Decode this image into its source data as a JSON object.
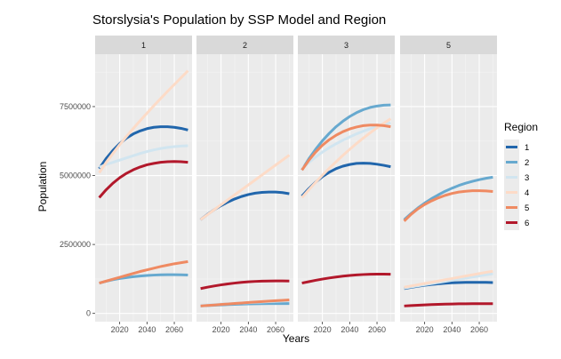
{
  "chart_data": {
    "type": "line",
    "title": "Storslysia's Population by SSP Model and Region",
    "xlabel": "Years",
    "ylabel": "Population",
    "x": [
      2005,
      2010,
      2015,
      2020,
      2025,
      2030,
      2035,
      2040,
      2045,
      2050,
      2055,
      2060,
      2065,
      2070
    ],
    "x_ticks": [
      2020,
      2040,
      2060
    ],
    "x_tick_labels": [
      "2020",
      "2040",
      "2060"
    ],
    "ylim": [
      -300000,
      9400000
    ],
    "y_ticks": [
      0,
      2500000,
      5000000,
      7500000
    ],
    "y_tick_labels": [
      "0",
      "2500000",
      "5000000",
      "7500000"
    ],
    "grid": true,
    "legend": {
      "title": "Region",
      "placement": "right",
      "entries": [
        "1",
        "2",
        "3",
        "4",
        "5",
        "6"
      ]
    },
    "colors": {
      "1": "#2166ac",
      "2": "#67a9cf",
      "3": "#d1e5f0",
      "4": "#fddbc7",
      "5": "#ef8a62",
      "6": "#b2182b"
    },
    "panels": [
      {
        "facet": "1",
        "series": [
          {
            "region": "1",
            "values": [
              5250000,
              5610000,
              5910000,
              6160000,
              6360000,
              6510000,
              6620000,
              6700000,
              6750000,
              6770000,
              6770000,
              6750000,
              6710000,
              6650000
            ]
          },
          {
            "region": "2",
            "values": [
              1100000,
              1165000,
              1220000,
              1265000,
              1300000,
              1330000,
              1355000,
              1375000,
              1390000,
              1400000,
              1405000,
              1405000,
              1400000,
              1390000
            ]
          },
          {
            "region": "3",
            "values": [
              5300000,
              5400000,
              5480000,
              5560000,
              5640000,
              5720000,
              5800000,
              5870000,
              5930000,
              5980000,
              6020000,
              6050000,
              6070000,
              6080000
            ]
          },
          {
            "region": "4",
            "values": [
              5100000,
              5470000,
              5800000,
              6120000,
              6420000,
              6710000,
              6990000,
              7260000,
              7530000,
              7790000,
              8050000,
              8300000,
              8550000,
              8800000
            ]
          },
          {
            "region": "5",
            "values": [
              1100000,
              1170000,
              1240000,
              1310000,
              1380000,
              1450000,
              1520000,
              1580000,
              1640000,
              1700000,
              1750000,
              1800000,
              1840000,
              1880000
            ]
          },
          {
            "region": "6",
            "values": [
              4200000,
              4480000,
              4720000,
              4920000,
              5080000,
              5210000,
              5310000,
              5390000,
              5440000,
              5480000,
              5500000,
              5510000,
              5500000,
              5480000
            ]
          }
        ]
      },
      {
        "facet": "2",
        "series": [
          {
            "region": "1",
            "values": [
              3400000,
              3590000,
              3760000,
              3910000,
              4040000,
              4150000,
              4240000,
              4310000,
              4360000,
              4390000,
              4400000,
              4400000,
              4380000,
              4340000
            ]
          },
          {
            "region": "2",
            "values": [
              270000,
              285000,
              298000,
              310000,
              320000,
              330000,
              338000,
              345000,
              350000,
              354000,
              357000,
              358000,
              358000,
              357000
            ]
          },
          {
            "region": "3",
            "values": [
              300000,
              313000,
              326000,
              339000,
              352000,
              364000,
              376000,
              388000,
              400000,
              412000,
              424000,
              436000,
              448000,
              460000
            ]
          },
          {
            "region": "4",
            "values": [
              3400000,
              3580000,
              3760000,
              3940000,
              4120000,
              4300000,
              4480000,
              4660000,
              4840000,
              5020000,
              5200000,
              5380000,
              5560000,
              5740000
            ]
          },
          {
            "region": "5",
            "values": [
              270000,
              288000,
              306000,
              324000,
              342000,
              360000,
              378000,
              395000,
              412000,
              428000,
              444000,
              460000,
              475000,
              490000
            ]
          },
          {
            "region": "6",
            "values": [
              900000,
              950000,
              995000,
              1035000,
              1070000,
              1100000,
              1125000,
              1145000,
              1160000,
              1170000,
              1175000,
              1178000,
              1178000,
              1175000
            ]
          }
        ]
      },
      {
        "facet": "3",
        "series": [
          {
            "region": "1",
            "values": [
              4250000,
              4520000,
              4760000,
              4960000,
              5120000,
              5250000,
              5340000,
              5400000,
              5440000,
              5450000,
              5440000,
              5410000,
              5370000,
              5320000
            ]
          },
          {
            "region": "2",
            "values": [
              5200000,
              5600000,
              5950000,
              6260000,
              6530000,
              6770000,
              6970000,
              7140000,
              7280000,
              7390000,
              7470000,
              7520000,
              7550000,
              7560000
            ]
          },
          {
            "region": "3",
            "values": [
              5250000,
              5470000,
              5670000,
              5850000,
              6010000,
              6150000,
              6280000,
              6400000,
              6510000,
              6610000,
              6700000,
              6780000,
              6850000,
              6910000
            ]
          },
          {
            "region": "4",
            "values": [
              4200000,
              4480000,
              4750000,
              5010000,
              5260000,
              5500000,
              5730000,
              5950000,
              6160000,
              6360000,
              6550000,
              6730000,
              6900000,
              7060000
            ]
          },
          {
            "region": "5",
            "values": [
              5200000,
              5550000,
              5850000,
              6100000,
              6300000,
              6460000,
              6590000,
              6690000,
              6760000,
              6810000,
              6830000,
              6830000,
              6810000,
              6770000
            ]
          },
          {
            "region": "6",
            "values": [
              1100000,
              1150000,
              1200000,
              1245000,
              1285000,
              1320000,
              1350000,
              1375000,
              1395000,
              1410000,
              1420000,
              1425000,
              1425000,
              1420000
            ]
          }
        ]
      },
      {
        "facet": "5",
        "series": [
          {
            "region": "1",
            "values": [
              900000,
              945000,
              985000,
              1020000,
              1050000,
              1075000,
              1095000,
              1110000,
              1120000,
              1125000,
              1128000,
              1128000,
              1125000,
              1120000
            ]
          },
          {
            "region": "2",
            "values": [
              3400000,
              3620000,
              3820000,
              4000000,
              4160000,
              4300000,
              4430000,
              4540000,
              4640000,
              4720000,
              4790000,
              4850000,
              4900000,
              4940000
            ]
          },
          {
            "region": "3",
            "values": [
              920000,
              960000,
              1000000,
              1040000,
              1080000,
              1120000,
              1160000,
              1200000,
              1240000,
              1280000,
              1320000,
              1360000,
              1400000,
              1440000
            ]
          },
          {
            "region": "4",
            "values": [
              950000,
              995000,
              1040000,
              1085000,
              1130000,
              1175000,
              1220000,
              1265000,
              1310000,
              1355000,
              1400000,
              1445000,
              1490000,
              1530000
            ]
          },
          {
            "region": "5",
            "values": [
              3350000,
              3590000,
              3790000,
              3950000,
              4080000,
              4190000,
              4280000,
              4350000,
              4400000,
              4430000,
              4450000,
              4450000,
              4440000,
              4420000
            ]
          },
          {
            "region": "6",
            "values": [
              270000,
              285000,
              298000,
              310000,
              320000,
              329000,
              336000,
              342000,
              347000,
              350000,
              352000,
              353000,
              353000,
              352000
            ]
          }
        ]
      }
    ]
  }
}
